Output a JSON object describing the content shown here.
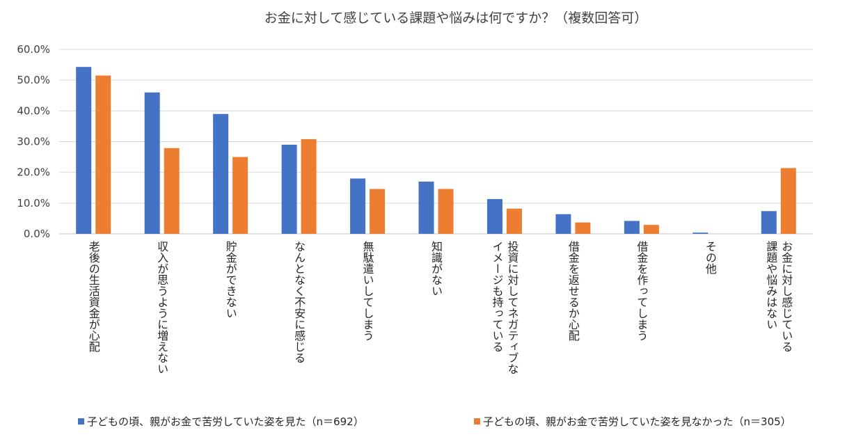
{
  "chart_data": {
    "type": "bar",
    "title": "お金に対して感じている課題や悩みは何ですか？（複数回答可）",
    "xlabel": "",
    "ylabel": "",
    "ylim": [
      0,
      60
    ],
    "yticks": [
      "0.0%",
      "10.0%",
      "20.0%",
      "30.0%",
      "40.0%",
      "50.0%",
      "60.0%"
    ],
    "grid": true,
    "legend_position": "bottom",
    "categories": [
      [
        "老後の生活資金が心配"
      ],
      [
        "収入が思うように増えない"
      ],
      [
        "貯金ができない"
      ],
      [
        "なんとなく不安に感じる"
      ],
      [
        "無駄遣いしてしまう"
      ],
      [
        "知識がない"
      ],
      [
        "投資に対してネガティブな",
        "イメージも持っている"
      ],
      [
        "借金を返せるか心配"
      ],
      [
        "借金を作ってしまう"
      ],
      [
        "その他"
      ],
      [
        "お金に対し感じている",
        "課題や悩みはない"
      ]
    ],
    "series": [
      {
        "name": "子どもの頃、親がお金で苦労していた姿を見た（n＝692）",
        "color": "#4472C4",
        "values": [
          54.3,
          46.0,
          39.0,
          29.0,
          18.0,
          17.0,
          11.3,
          6.4,
          4.2,
          0.4,
          7.4
        ]
      },
      {
        "name": "子どもの頃、親がお金で苦労していた姿を見なかった（n＝305）",
        "color": "#ED7D31",
        "values": [
          51.5,
          27.9,
          25.0,
          30.8,
          14.6,
          14.6,
          8.2,
          3.7,
          2.9,
          0.0,
          21.4
        ]
      }
    ]
  }
}
